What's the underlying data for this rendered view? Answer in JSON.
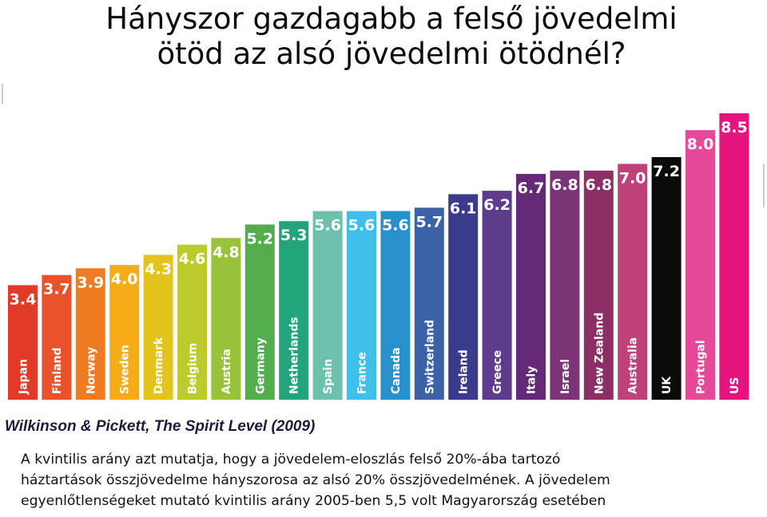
{
  "page": {
    "title_lines": [
      "Hányszor gazdagabb a felső jövedelmi",
      "ötöd az alsó jövedelmi ötödnél?"
    ],
    "source": "Wilkinson & Pickett, The Spirit Level (2009)",
    "note_lines": [
      "A kvintilis arány azt mutatja, hogy a jövedelem-eloszlás felső 20%-ába tartozó",
      "háztartások összjövedelme hányszorosa az alsó 20% összjövedelmének. A jövedelem",
      "egyenlőtlenségeket mutató kvintilis arány 2005-ben 5,5 volt Magyarország esetében"
    ]
  },
  "chart_data": {
    "type": "bar",
    "title": "",
    "xlabel": "",
    "ylabel": "",
    "categories": [
      "Japan",
      "Finland",
      "Norway",
      "Sweden",
      "Denmark",
      "Belgium",
      "Austria",
      "Germany",
      "Netherlands",
      "Spain",
      "France",
      "Canada",
      "Switzerland",
      "Ireland",
      "Greece",
      "Italy",
      "Israel",
      "New Zealand",
      "Australia",
      "UK",
      "Portugal",
      "US"
    ],
    "values": [
      3.4,
      3.7,
      3.9,
      4.0,
      4.3,
      4.6,
      4.8,
      5.2,
      5.3,
      5.6,
      5.6,
      5.6,
      5.7,
      6.1,
      6.2,
      6.7,
      6.8,
      6.8,
      7.0,
      7.2,
      8.0,
      8.5
    ],
    "value_labels": [
      "3.4",
      "3.7",
      "3.9",
      "4.0",
      "4.3",
      "4.6",
      "4.8",
      "5.2",
      "5.3",
      "5.6",
      "5.6",
      "5.6",
      "5.7",
      "6.1",
      "6.2",
      "6.7",
      "6.8",
      "6.8",
      "7.0",
      "7.2",
      "8.0",
      "8.5"
    ],
    "colors": [
      "#e23a27",
      "#e8532b",
      "#ef7b22",
      "#f6ac16",
      "#e2c41c",
      "#bccb2c",
      "#97c23a",
      "#53ad4c",
      "#22a47c",
      "#6cc0ac",
      "#3fbfe9",
      "#2a90cc",
      "#3b62a7",
      "#3b3b8e",
      "#5d3c8d",
      "#652a77",
      "#7b3576",
      "#8c2f67",
      "#c0417a",
      "#0a0a0a",
      "#e6499a",
      "#e6137e"
    ],
    "ylim": [
      0,
      9
    ],
    "grid": false,
    "legend": "none"
  }
}
